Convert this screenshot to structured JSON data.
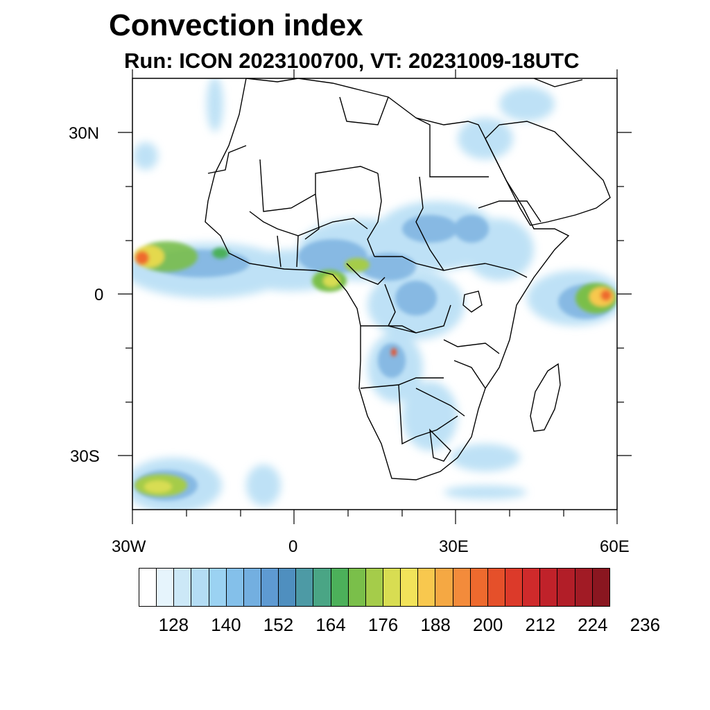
{
  "title": "Convection index",
  "subtitle": "Run: ICON 2023100700,  VT: 20231009-18UTC",
  "axes": {
    "lat_labels": [
      "30N",
      "0",
      "30S"
    ],
    "lon_labels": [
      "30W",
      "0",
      "30E",
      "60E"
    ]
  },
  "colorbar": {
    "colors": [
      "#ffffff",
      "#e6f4fc",
      "#cce8f7",
      "#b4dcf4",
      "#9bd2f2",
      "#84c0ea",
      "#73afe0",
      "#5e9ad2",
      "#4f8fbf",
      "#4d9aa5",
      "#4aa585",
      "#4cb05a",
      "#7abf4a",
      "#a5cc4a",
      "#d8dd52",
      "#f2e35a",
      "#f8c84e",
      "#f5a843",
      "#f38b3b",
      "#ee6a2e",
      "#e5502a",
      "#dc3a2a",
      "#cf2a2b",
      "#c0222a",
      "#b21e28",
      "#a11b25",
      "#8a1620"
    ],
    "tick_labels": [
      "128",
      "140",
      "152",
      "164",
      "176",
      "188",
      "200",
      "212",
      "224",
      "236"
    ]
  }
}
